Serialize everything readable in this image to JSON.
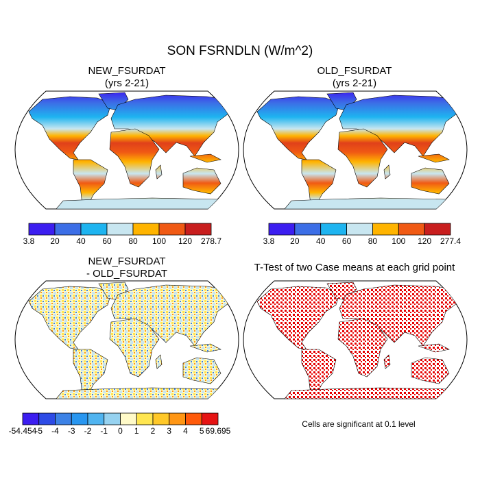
{
  "title": "SON FSRNDLN (W/m^2)",
  "panels": [
    {
      "title": [
        "NEW_FSURDAT",
        "(yrs 2-21)"
      ],
      "colorbar": {
        "colors": [
          "#3c1ef0",
          "#3c6ee6",
          "#1eb4f0",
          "#c8e6f0",
          "#ffb400",
          "#f05a14",
          "#c81e1e"
        ],
        "labels": [
          3.8,
          20,
          40,
          60,
          80,
          100,
          120,
          278.7
        ]
      }
    },
    {
      "title": [
        "OLD_FSURDAT",
        "(yrs 2-21)"
      ],
      "colorbar": {
        "colors": [
          "#3c1ef0",
          "#3c6ee6",
          "#1eb4f0",
          "#c8e6f0",
          "#ffb400",
          "#f05a14",
          "#c81e1e"
        ],
        "labels": [
          3.8,
          20,
          40,
          60,
          80,
          100,
          120,
          277.4
        ]
      }
    },
    {
      "title": [
        "NEW_FSURDAT",
        "- OLD_FSURDAT"
      ],
      "colorbar": {
        "colors": [
          "#3c1ef0",
          "#2d4be6",
          "#3c82e6",
          "#2896f0",
          "#50b4f0",
          "#96d2f0",
          "#fffac8",
          "#ffe650",
          "#ffc828",
          "#ff9614",
          "#ff5a0a",
          "#e61414",
          "#c81e1e"
        ],
        "labels": [
          -54.454,
          -5,
          -4,
          -3,
          -2,
          -1,
          0,
          1,
          2,
          3,
          4,
          5,
          69.695
        ]
      }
    },
    {
      "title": [
        "T-Test of two Case means at each grid point"
      ],
      "note": "Cells are significant at 0.1 level"
    }
  ]
}
